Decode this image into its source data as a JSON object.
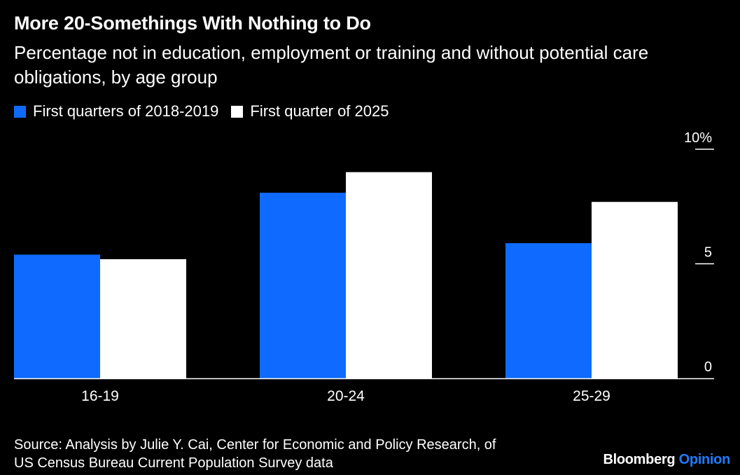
{
  "title": "More 20-Somethings With Nothing to Do",
  "subtitle": "Percentage not in education, employment or training and without potential care obligations, by age group",
  "source": {
    "line1": "Source: Analysis by Julie Y. Cai, Center for Economic and Policy Research, of",
    "line2": "US Census Bureau Current Population Survey data"
  },
  "brand": {
    "name": "Bloomberg",
    "suffix": "Opinion",
    "suffix_color": "#1f7bff"
  },
  "colors": {
    "background": "#000000",
    "series1": "#0f6bff",
    "series2": "#ffffff",
    "axis": "#ffffff"
  },
  "chart_data": {
    "type": "bar",
    "categories": [
      "16-19",
      "20-24",
      "25-29"
    ],
    "series": [
      {
        "name": "First quarters of 2018-2019",
        "values": [
          5.4,
          8.1,
          5.9
        ]
      },
      {
        "name": "First quarter of 2025",
        "values": [
          5.2,
          9.0,
          7.7
        ]
      }
    ],
    "yticks": [
      {
        "value": 0,
        "label": "0"
      },
      {
        "value": 5,
        "label": "5"
      },
      {
        "value": 10,
        "label": "10%"
      }
    ],
    "ylim": [
      0,
      10
    ],
    "xlabel": "",
    "ylabel": "",
    "legend": "top-left",
    "grid": false
  }
}
